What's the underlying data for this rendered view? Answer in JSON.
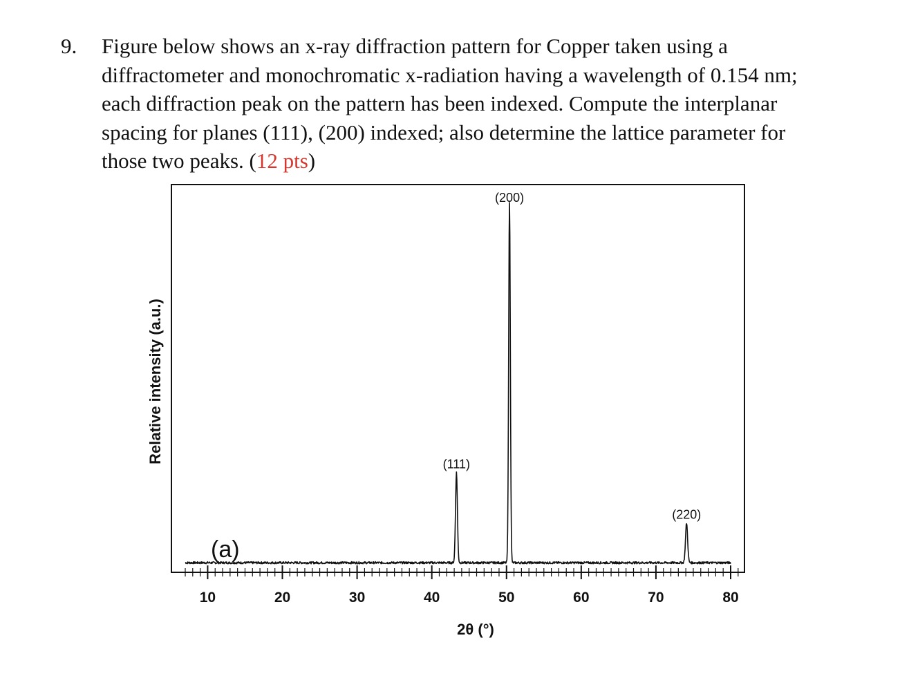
{
  "question": {
    "number": "9.",
    "lines": [
      "Figure below shows an x-ray diffraction pattern for Copper taken using a",
      "diffractometer and monochromatic x-radiation having a wavelength of 0.154 nm;",
      "each diffraction peak on the pattern has been indexed. Compute the interplanar",
      "spacing for planes (111), (200) indexed; also determine the lattice parameter for"
    ],
    "last_line_text": "those two peaks. (",
    "points": "12 pts",
    "close_paren": ")",
    "points_color": "#d6362b"
  },
  "chart_data": {
    "type": "line",
    "panel_label": "(a)",
    "xlabel": "2θ (°)",
    "ylabel": "Relative intensity (a.u.)",
    "xlim": [
      5,
      83
    ],
    "ylim": [
      0,
      100
    ],
    "x_ticks": [
      10,
      20,
      30,
      40,
      50,
      60,
      70,
      80
    ],
    "grid": false,
    "baseline": 1.5,
    "peaks": [
      {
        "label": "(111)",
        "x": 43.3,
        "height": 25
      },
      {
        "label": "(200)",
        "x": 50.4,
        "height": 100
      },
      {
        "label": "(220)",
        "x": 74.1,
        "height": 11
      }
    ],
    "line_color": "#111111"
  }
}
